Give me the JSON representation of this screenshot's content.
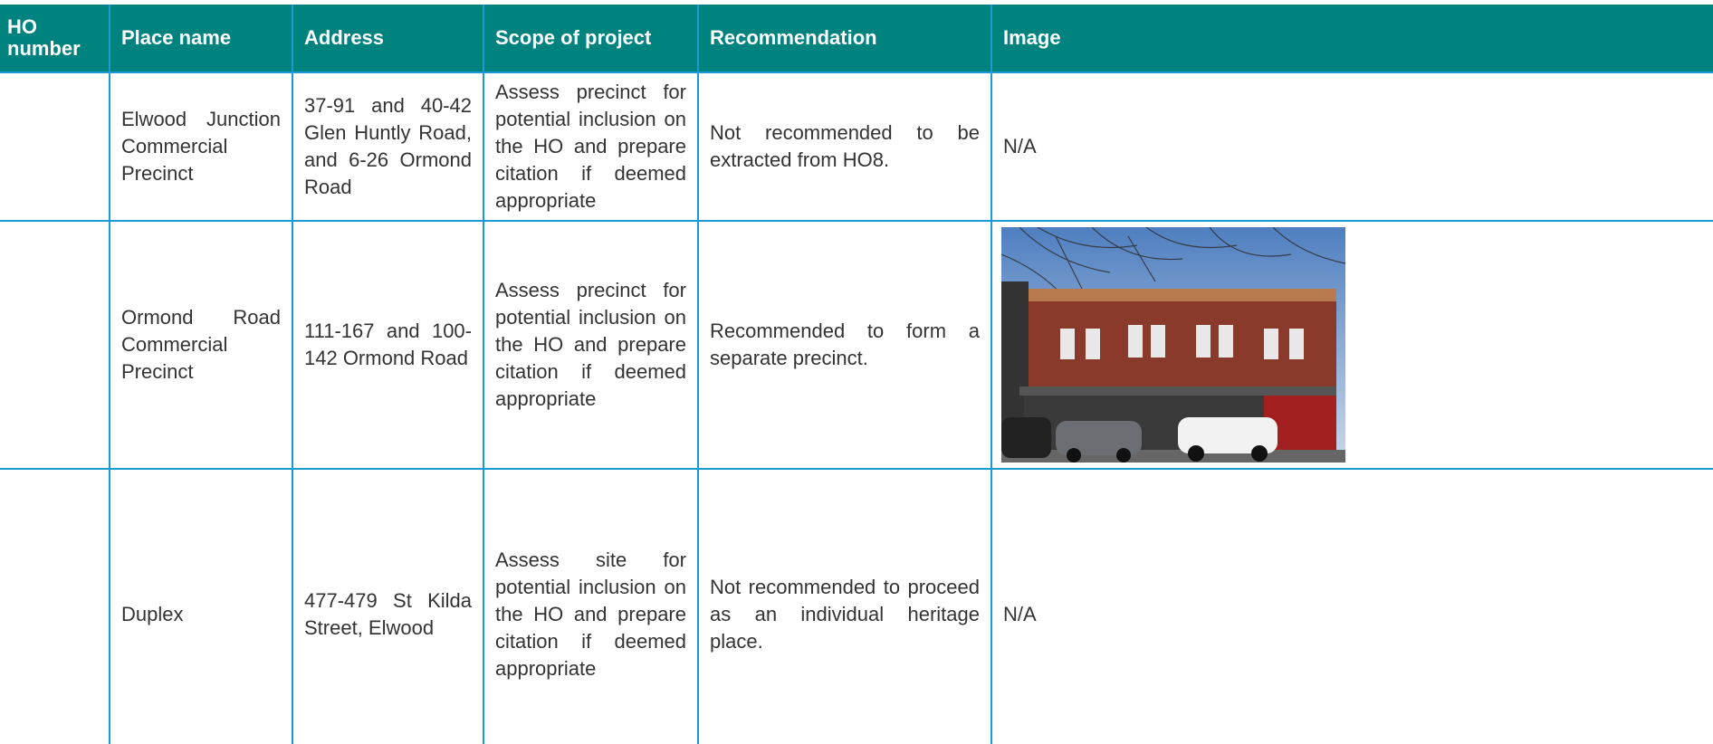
{
  "header": {
    "columns": [
      "HO number",
      "Place name",
      "Address",
      "Scope of project",
      "Recommendation",
      "Image"
    ]
  },
  "table": {
    "rows": [
      {
        "place_name": "Elwood Junction Commercial Precinct",
        "address": "37-91 and 40-42 Glen Huntly Road, and 6-26 Ormond Road",
        "scope": "Assess precinct for potential inclusion on the HO and prepare citation if deemed appropriate",
        "recommendation": "Not recommended to be extracted from HO8.",
        "image": "N/A"
      },
      {
        "place_name": "Ormond Road Commercial Precinct",
        "address": "111-167 and 100-142 Ormond Road",
        "scope": "Assess precinct for potential inclusion on the HO and prepare citation if deemed appropriate",
        "recommendation": "Recommended to form a separate precinct."
      },
      {
        "place_name": "Duplex",
        "address": "477-479 St Kilda Street, Elwood",
        "scope": "Assess site for potential inclusion on the HO and prepare citation if deemed appropriate",
        "recommendation": "Not recommended to proceed as an individual heritage place.",
        "image": "N/A"
      }
    ]
  }
}
